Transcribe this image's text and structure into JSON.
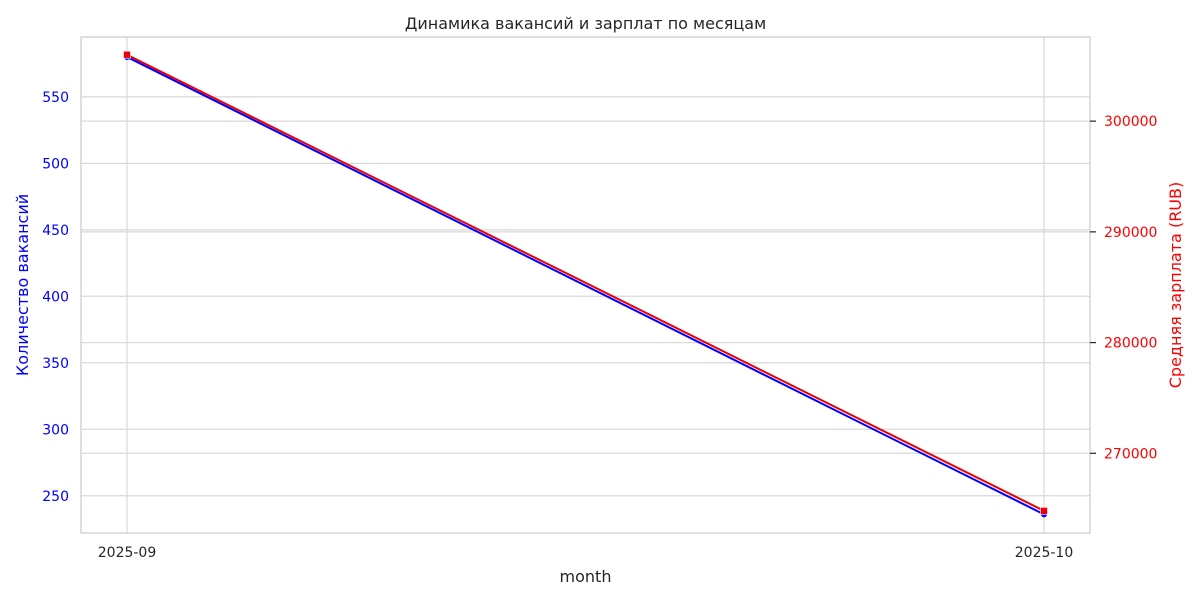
{
  "chart_data": {
    "type": "line",
    "title": "Динамика вакансий и зарплат по месяцам",
    "xlabel": "month",
    "categories": [
      "2025-09",
      "2025-10"
    ],
    "left_axis": {
      "label": "Количество вакансий",
      "color": "#0000ff",
      "ylim": [
        222,
        595
      ],
      "ticks": [
        250,
        300,
        350,
        400,
        450,
        500,
        550
      ]
    },
    "right_axis": {
      "label": "Средняя зарплата (RUB)",
      "color": "#ff0000",
      "ylim": [
        262800,
        307600
      ],
      "ticks": [
        270000,
        280000,
        290000,
        300000
      ]
    },
    "series": [
      {
        "axis": "left",
        "color": "#0000ff",
        "values": [
          580,
          236
        ]
      },
      {
        "axis": "right",
        "color": "#e8000b",
        "values": [
          306000,
          264800
        ]
      }
    ],
    "grid": true
  }
}
